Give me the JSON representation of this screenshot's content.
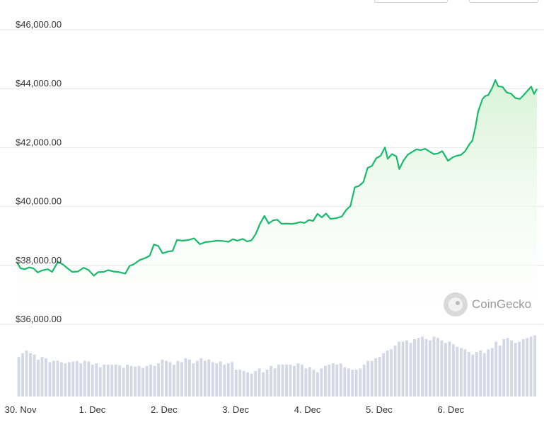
{
  "header": {
    "range_button_left": "",
    "range_button_right": ""
  },
  "watermark": {
    "brand": "CoinGecko",
    "logo_icon": "coingecko-logo-icon"
  },
  "colors": {
    "line": "#1aba6c",
    "fill_top": "#d6f2d4",
    "fill_bottom": "#ffffff",
    "volume_bar": "#d4d8e6",
    "grid": "#e6e6e6"
  },
  "chart_data": {
    "type": "area",
    "title": "",
    "xlabel": "",
    "ylabel": "",
    "ylim": [
      36000,
      46000
    ],
    "y_ticks": [
      {
        "value": 36000,
        "label": "$36,000.00"
      },
      {
        "value": 38000,
        "label": "$38,000.00"
      },
      {
        "value": 40000,
        "label": "$40,000.00"
      },
      {
        "value": 42000,
        "label": "$42,000.00"
      },
      {
        "value": 44000,
        "label": "$44,000.00"
      },
      {
        "value": 46000,
        "label": "$46,000.00"
      }
    ],
    "x_ticks": [
      {
        "t": 0.0,
        "label": "30. Nov"
      },
      {
        "t": 1.0,
        "label": "1. Dec"
      },
      {
        "t": 2.0,
        "label": "2. Dec"
      },
      {
        "t": 3.0,
        "label": "3. Dec"
      },
      {
        "t": 4.0,
        "label": "4. Dec"
      },
      {
        "t": 5.0,
        "label": "5. Dec"
      },
      {
        "t": 6.0,
        "label": "6. Dec"
      }
    ],
    "x_unit": "days from 30 Nov 00:00",
    "grid": true,
    "series": [
      {
        "name": "Price",
        "points": [
          [
            -0.05,
            38100
          ],
          [
            0.0,
            37900
          ],
          [
            0.06,
            37870
          ],
          [
            0.12,
            37930
          ],
          [
            0.18,
            37900
          ],
          [
            0.24,
            37760
          ],
          [
            0.3,
            37830
          ],
          [
            0.38,
            37870
          ],
          [
            0.44,
            37780
          ],
          [
            0.52,
            38120
          ],
          [
            0.58,
            38050
          ],
          [
            0.64,
            37930
          ],
          [
            0.72,
            37780
          ],
          [
            0.8,
            37790
          ],
          [
            0.88,
            37920
          ],
          [
            0.95,
            37840
          ],
          [
            1.02,
            37650
          ],
          [
            1.08,
            37770
          ],
          [
            1.16,
            37780
          ],
          [
            1.22,
            37840
          ],
          [
            1.3,
            37790
          ],
          [
            1.38,
            37770
          ],
          [
            1.46,
            37720
          ],
          [
            1.52,
            37980
          ],
          [
            1.58,
            38040
          ],
          [
            1.66,
            38180
          ],
          [
            1.74,
            38250
          ],
          [
            1.8,
            38330
          ],
          [
            1.86,
            38710
          ],
          [
            1.92,
            38660
          ],
          [
            1.98,
            38410
          ],
          [
            2.06,
            38470
          ],
          [
            2.12,
            38490
          ],
          [
            2.18,
            38860
          ],
          [
            2.26,
            38840
          ],
          [
            2.34,
            38860
          ],
          [
            2.42,
            38920
          ],
          [
            2.5,
            38720
          ],
          [
            2.58,
            38790
          ],
          [
            2.66,
            38810
          ],
          [
            2.74,
            38840
          ],
          [
            2.82,
            38830
          ],
          [
            2.9,
            38800
          ],
          [
            2.96,
            38890
          ],
          [
            3.02,
            38840
          ],
          [
            3.1,
            38900
          ],
          [
            3.16,
            38810
          ],
          [
            3.22,
            38850
          ],
          [
            3.28,
            39070
          ],
          [
            3.34,
            39420
          ],
          [
            3.4,
            39680
          ],
          [
            3.46,
            39420
          ],
          [
            3.52,
            39530
          ],
          [
            3.58,
            39550
          ],
          [
            3.64,
            39410
          ],
          [
            3.7,
            39420
          ],
          [
            3.78,
            39410
          ],
          [
            3.84,
            39430
          ],
          [
            3.9,
            39470
          ],
          [
            3.96,
            39440
          ],
          [
            4.02,
            39540
          ],
          [
            4.08,
            39510
          ],
          [
            4.14,
            39750
          ],
          [
            4.2,
            39630
          ],
          [
            4.26,
            39760
          ],
          [
            4.32,
            39580
          ],
          [
            4.4,
            39600
          ],
          [
            4.48,
            39660
          ],
          [
            4.54,
            39880
          ],
          [
            4.6,
            40020
          ],
          [
            4.66,
            40650
          ],
          [
            4.72,
            40700
          ],
          [
            4.78,
            40830
          ],
          [
            4.84,
            41310
          ],
          [
            4.9,
            41380
          ],
          [
            4.96,
            41640
          ],
          [
            5.02,
            41720
          ],
          [
            5.08,
            42000
          ],
          [
            5.12,
            41620
          ],
          [
            5.18,
            41780
          ],
          [
            5.24,
            41700
          ],
          [
            5.28,
            41270
          ],
          [
            5.34,
            41560
          ],
          [
            5.4,
            41760
          ],
          [
            5.46,
            41850
          ],
          [
            5.52,
            41940
          ],
          [
            5.58,
            41910
          ],
          [
            5.64,
            41960
          ],
          [
            5.7,
            41870
          ],
          [
            5.76,
            41780
          ],
          [
            5.82,
            41800
          ],
          [
            5.88,
            41880
          ],
          [
            5.92,
            41720
          ],
          [
            5.96,
            41550
          ],
          [
            6.02,
            41660
          ],
          [
            6.08,
            41720
          ],
          [
            6.14,
            41750
          ],
          [
            6.2,
            41880
          ],
          [
            6.26,
            42120
          ],
          [
            6.3,
            42240
          ],
          [
            6.34,
            42660
          ],
          [
            6.38,
            43220
          ],
          [
            6.44,
            43650
          ],
          [
            6.48,
            43750
          ],
          [
            6.52,
            43780
          ],
          [
            6.58,
            44040
          ],
          [
            6.62,
            44290
          ],
          [
            6.66,
            44080
          ],
          [
            6.72,
            44060
          ],
          [
            6.78,
            43870
          ],
          [
            6.84,
            43830
          ],
          [
            6.9,
            43680
          ],
          [
            6.96,
            43650
          ],
          [
            7.0,
            43740
          ],
          [
            7.04,
            43850
          ],
          [
            7.08,
            43960
          ],
          [
            7.12,
            44070
          ],
          [
            7.16,
            43820
          ],
          [
            7.2,
            43990
          ]
        ]
      },
      {
        "name": "Volume",
        "type": "bar",
        "note_scale": "relative",
        "values": [
          0.62,
          0.68,
          0.72,
          0.68,
          0.66,
          0.58,
          0.62,
          0.6,
          0.54,
          0.56,
          0.56,
          0.54,
          0.52,
          0.54,
          0.55,
          0.56,
          0.52,
          0.56,
          0.55,
          0.5,
          0.52,
          0.46,
          0.5,
          0.5,
          0.5,
          0.5,
          0.49,
          0.45,
          0.5,
          0.48,
          0.47,
          0.48,
          0.45,
          0.48,
          0.5,
          0.48,
          0.52,
          0.58,
          0.56,
          0.54,
          0.5,
          0.56,
          0.54,
          0.6,
          0.58,
          0.52,
          0.56,
          0.6,
          0.56,
          0.58,
          0.54,
          0.52,
          0.55,
          0.5,
          0.52,
          0.54,
          0.42,
          0.42,
          0.4,
          0.38,
          0.36,
          0.4,
          0.44,
          0.38,
          0.42,
          0.48,
          0.44,
          0.5,
          0.5,
          0.5,
          0.5,
          0.48,
          0.52,
          0.5,
          0.44,
          0.46,
          0.42,
          0.38,
          0.44,
          0.48,
          0.5,
          0.52,
          0.5,
          0.52,
          0.46,
          0.44,
          0.42,
          0.42,
          0.44,
          0.5,
          0.56,
          0.56,
          0.6,
          0.62,
          0.68,
          0.72,
          0.74,
          0.8,
          0.86,
          0.86,
          0.88,
          0.84,
          0.9,
          0.92,
          0.94,
          0.9,
          0.88,
          0.94,
          0.92,
          0.88,
          0.84,
          0.86,
          0.82,
          0.78,
          0.76,
          0.74,
          0.7,
          0.66,
          0.7,
          0.72,
          0.68,
          0.74,
          0.76,
          0.86,
          0.8,
          0.9,
          0.92,
          0.88,
          0.84,
          0.86,
          0.9,
          0.92,
          0.94,
          0.96
        ]
      }
    ]
  }
}
